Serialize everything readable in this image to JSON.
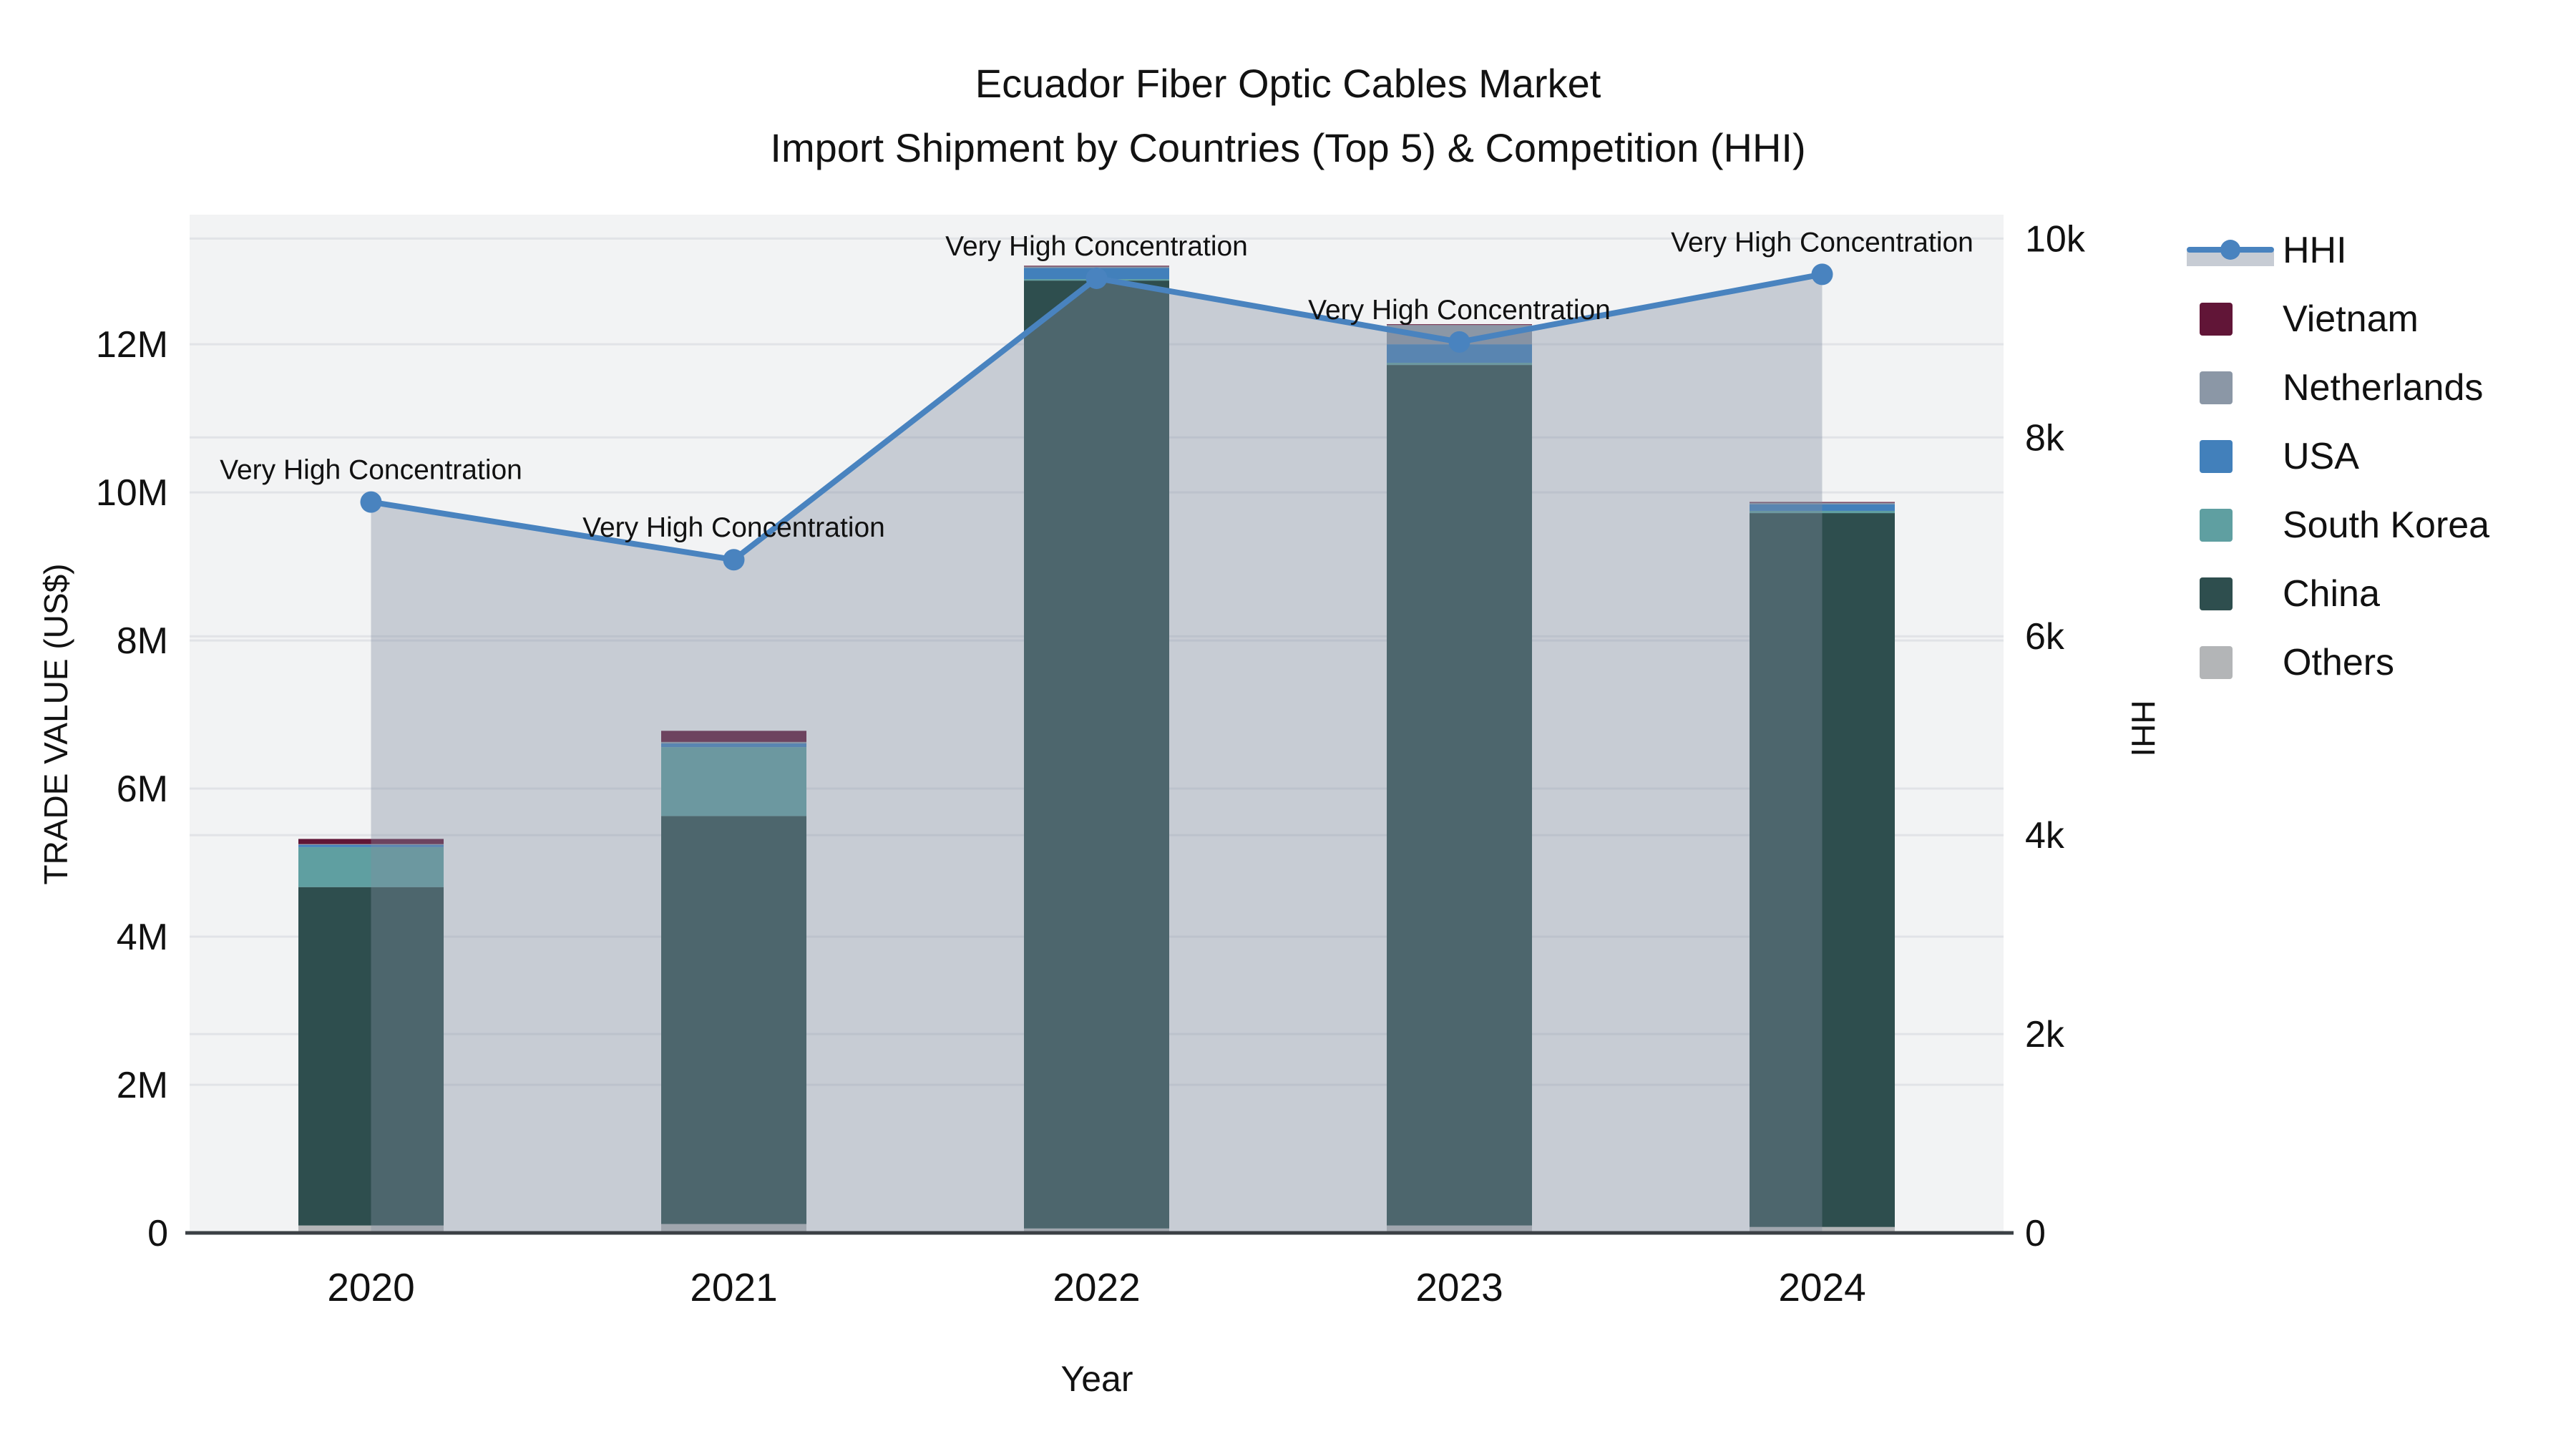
{
  "title": {
    "line1": "Ecuador Fiber Optic Cables Market",
    "line2": "Import Shipment by Countries (Top 5) & Competition (HHI)"
  },
  "x_axis": {
    "title": "Year",
    "ticks": [
      "2020",
      "2021",
      "2022",
      "2023",
      "2024"
    ]
  },
  "y_axis_left": {
    "title": "TRADE VALUE (US$)",
    "ticks": [
      "0",
      "2M",
      "4M",
      "6M",
      "8M",
      "10M",
      "12M"
    ]
  },
  "y_axis_right": {
    "title": "HHI",
    "ticks": [
      "0",
      "2k",
      "4k",
      "6k",
      "8k",
      "10k"
    ]
  },
  "legend": {
    "items": [
      {
        "id": "hhi",
        "label": "HHI",
        "type": "line",
        "color": "#4983bf"
      },
      {
        "id": "vietnam",
        "label": "Vietnam",
        "type": "swatch",
        "color": "#611537"
      },
      {
        "id": "netherlands",
        "label": "Netherlands",
        "type": "swatch",
        "color": "#8b97a6"
      },
      {
        "id": "usa",
        "label": "USA",
        "type": "swatch",
        "color": "#4280bb"
      },
      {
        "id": "south-korea",
        "label": "South Korea",
        "type": "swatch",
        "color": "#5f9fa1"
      },
      {
        "id": "china",
        "label": "China",
        "type": "swatch",
        "color": "#2e4e4e"
      },
      {
        "id": "others",
        "label": "Others",
        "type": "swatch",
        "color": "#b3b5b7"
      }
    ]
  },
  "chart_data": {
    "type": "combo-stacked-bar-line",
    "title": "Ecuador Fiber Optic Cables Market Import Shipment by Countries (Top 5) & Competition (HHI)",
    "categories": [
      "2020",
      "2021",
      "2022",
      "2023",
      "2024"
    ],
    "xlabel": "Year",
    "ylabel_left": "TRADE VALUE (US$)",
    "ylabel_right": "HHI",
    "ylim_left": [
      0,
      13750000
    ],
    "ylim_right": [
      0,
      10240
    ],
    "grid": true,
    "legend_position": "right",
    "bar_series": [
      {
        "name": "Others",
        "color": "#b3b5b7",
        "values": [
          100000,
          120000,
          60000,
          100000,
          80000
        ]
      },
      {
        "name": "China",
        "color": "#2e4e4e",
        "values": [
          4570000,
          5510000,
          12800000,
          11620000,
          9640000
        ]
      },
      {
        "name": "South Korea",
        "color": "#5f9fa1",
        "values": [
          540000,
          930000,
          20000,
          30000,
          30000
        ]
      },
      {
        "name": "USA",
        "color": "#4280bb",
        "values": [
          30000,
          50000,
          150000,
          250000,
          90000
        ]
      },
      {
        "name": "Netherlands",
        "color": "#8b97a6",
        "values": [
          10000,
          20000,
          20000,
          260000,
          20000
        ]
      },
      {
        "name": "Vietnam",
        "color": "#611537",
        "values": [
          70000,
          150000,
          10000,
          10000,
          10000
        ]
      }
    ],
    "line_series": {
      "name": "HHI",
      "color": "#4983bf",
      "fill": "rgba(130,143,160,0.38)",
      "values": [
        7350,
        6770,
        9600,
        8960,
        9640
      ],
      "annotations": [
        "Very High Concentration",
        "Very High Concentration",
        "Very High Concentration",
        "Very High Concentration",
        "Very High Concentration"
      ]
    }
  }
}
